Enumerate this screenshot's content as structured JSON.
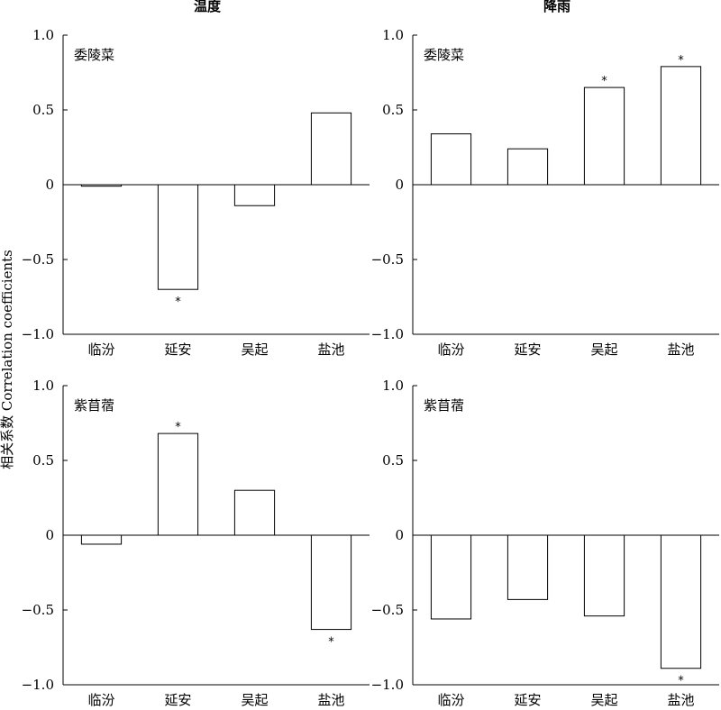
{
  "figure": {
    "ylabel": "相关系数 Correlation coefficients",
    "column_titles": [
      "温度",
      "降雨"
    ]
  },
  "chart_data": [
    {
      "type": "bar",
      "column": "温度",
      "panel_label": "委陵菜",
      "categories": [
        "临汾",
        "延安",
        "吴起",
        "盐池"
      ],
      "values": [
        -0.01,
        -0.7,
        -0.14,
        0.48
      ],
      "significant": [
        false,
        true,
        false,
        false
      ],
      "ylim": [
        -1.0,
        1.0
      ],
      "yticks": [
        1.0,
        0.5,
        0,
        -0.5,
        -1.0
      ],
      "ytick_labels": [
        "1.0",
        "0.5",
        "0",
        "−0.5",
        "−1.0"
      ]
    },
    {
      "type": "bar",
      "column": "降雨",
      "panel_label": "委陵菜",
      "categories": [
        "临汾",
        "延安",
        "吴起",
        "盐池"
      ],
      "values": [
        0.34,
        0.24,
        0.65,
        0.79
      ],
      "significant": [
        false,
        false,
        true,
        true
      ],
      "ylim": [
        -1.0,
        1.0
      ],
      "yticks": [
        1.0,
        0.5,
        0,
        -0.5,
        -1.0
      ],
      "ytick_labels": [
        "1.0",
        "0.5",
        "0",
        "−0.5",
        "−1.0"
      ]
    },
    {
      "type": "bar",
      "column": "温度",
      "panel_label": "紫苜蓿",
      "categories": [
        "临汾",
        "延安",
        "吴起",
        "盐池"
      ],
      "values": [
        -0.06,
        0.68,
        0.3,
        -0.63
      ],
      "significant": [
        false,
        true,
        false,
        true
      ],
      "ylim": [
        -1.0,
        1.0
      ],
      "yticks": [
        1.0,
        0.5,
        0,
        -0.5,
        -1.0
      ],
      "ytick_labels": [
        "1.0",
        "0.5",
        "0",
        "−0.5",
        "−1.0"
      ]
    },
    {
      "type": "bar",
      "column": "降雨",
      "panel_label": "紫苜蓿",
      "categories": [
        "临汾",
        "延安",
        "吴起",
        "盐池"
      ],
      "values": [
        -0.56,
        -0.43,
        -0.54,
        -0.89
      ],
      "significant": [
        false,
        false,
        false,
        true
      ],
      "ylim": [
        -1.0,
        1.0
      ],
      "yticks": [
        1.0,
        0.5,
        0,
        -0.5,
        -1.0
      ],
      "ytick_labels": [
        "1.0",
        "0.5",
        "0",
        "−0.5",
        "−1.0"
      ]
    }
  ],
  "significance_marker": "*"
}
